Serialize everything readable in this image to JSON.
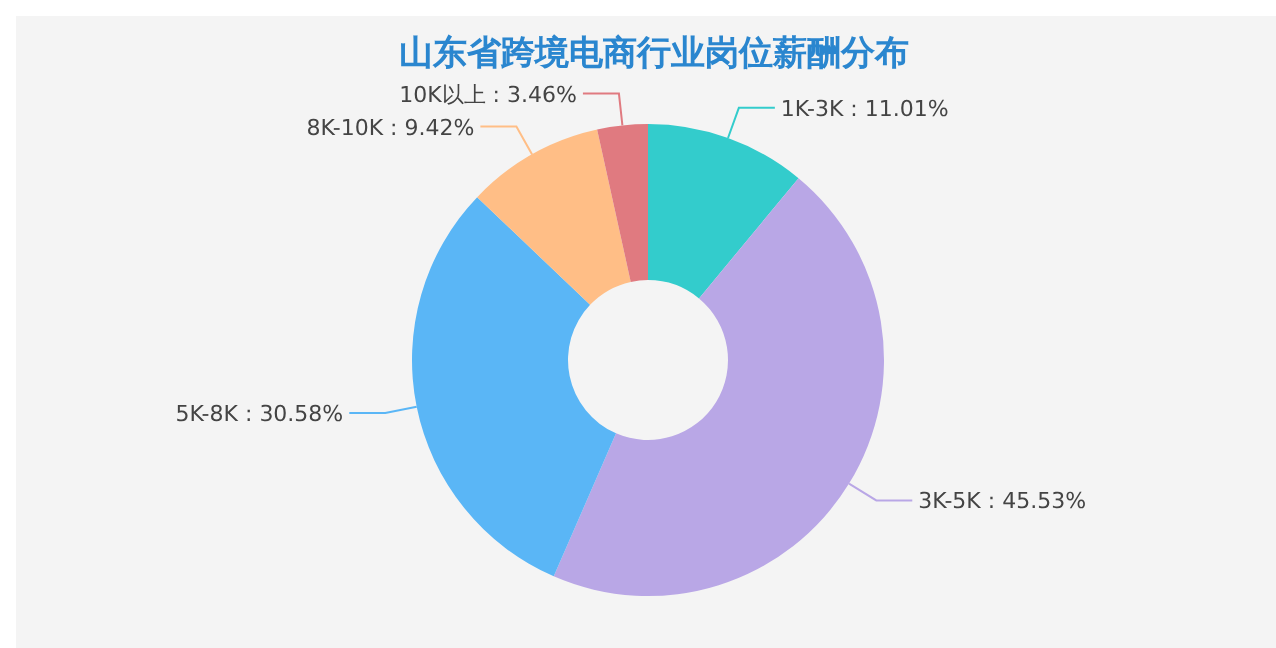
{
  "chart_data": {
    "type": "donut",
    "title": "山东省跨境电商行业岗位薪酬分布",
    "categories": [
      "1K-3K",
      "3K-5K",
      "5K-8K",
      "8K-10K",
      "10K以上"
    ],
    "values": [
      11.01,
      45.53,
      30.58,
      9.42,
      3.46
    ],
    "value_labels": [
      "11.01%",
      "45.53%",
      "30.58%",
      "9.42%",
      "3.46%"
    ],
    "colors": [
      "#33cccc",
      "#b9a7e6",
      "#5ab6f6",
      "#ffbe86",
      "#e07a80"
    ],
    "legend": false
  }
}
